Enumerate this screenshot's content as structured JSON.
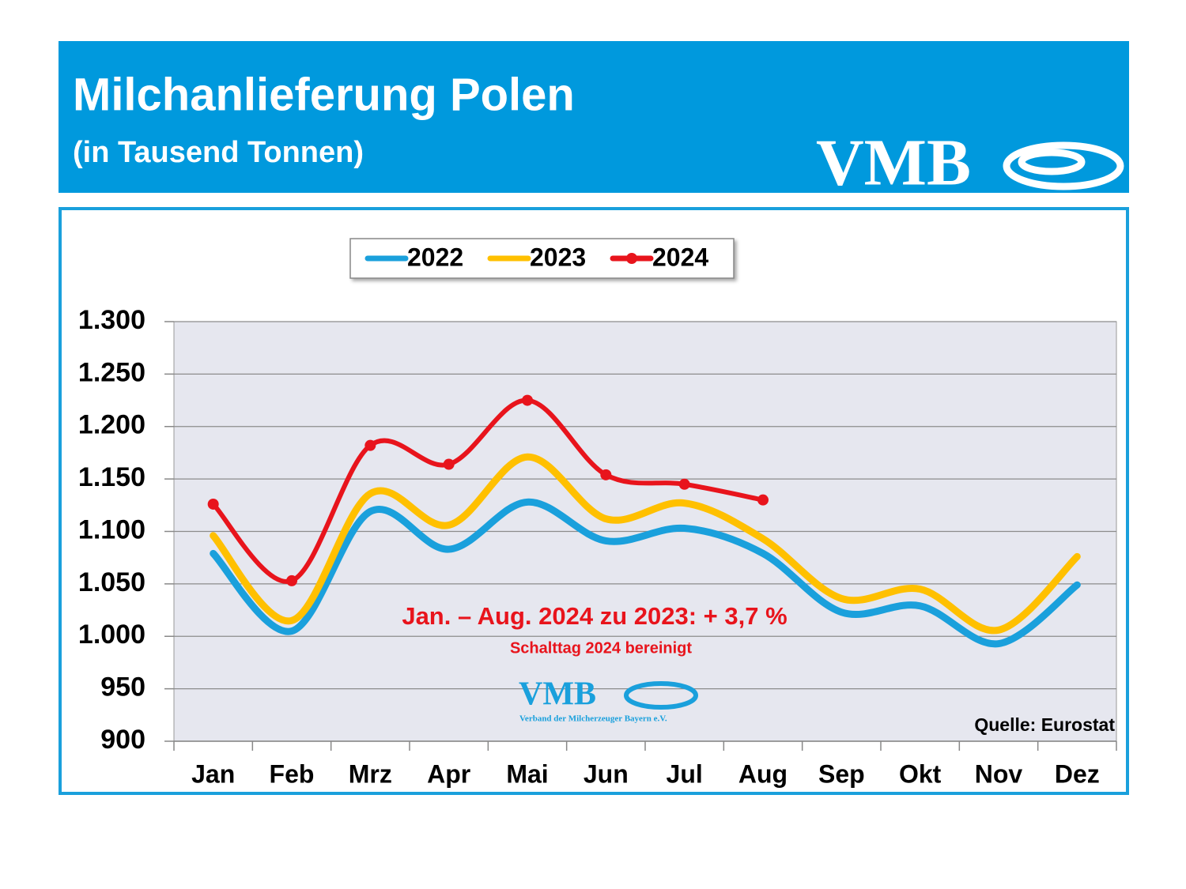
{
  "header": {
    "title": "Milchanlieferung Polen",
    "subtitle": "(in Tausend Tonnen)",
    "logo": "VMB"
  },
  "chart_data": {
    "type": "line",
    "categories": [
      "Jan",
      "Feb",
      "Mrz",
      "Apr",
      "Mai",
      "Jun",
      "Jul",
      "Aug",
      "Sep",
      "Okt",
      "Nov",
      "Dez"
    ],
    "series": [
      {
        "name": "2022",
        "color": "#1aa0dc",
        "values": [
          1079,
          1005,
          1119,
          1083,
          1128,
          1091,
          1103,
          1079,
          1023,
          1029,
          993,
          1049
        ]
      },
      {
        "name": "2023",
        "color": "#ffc000",
        "values": [
          1096,
          1015,
          1136,
          1106,
          1171,
          1112,
          1127,
          1093,
          1036,
          1045,
          1006,
          1076
        ]
      },
      {
        "name": "2024",
        "color": "#e8141c",
        "markers": true,
        "values": [
          1126,
          1053,
          1182,
          1164,
          1225,
          1154,
          1145,
          1130,
          null,
          null,
          null,
          null
        ]
      }
    ],
    "ylim": [
      900,
      1300
    ],
    "yticks": [
      900,
      950,
      {
        "value": 1000,
        "label": "1.000"
      },
      {
        "value": 1050,
        "label": "1.050"
      },
      {
        "value": 1100,
        "label": "1.100"
      },
      {
        "value": 1150,
        "label": "1.150"
      },
      {
        "value": 1200,
        "label": "1.200"
      },
      {
        "value": 1250,
        "label": "1.250"
      },
      {
        "value": 1300,
        "label": "1.300"
      }
    ],
    "grid": true,
    "legend": "top",
    "annotations": [
      "Jan. – Aug. 2024 zu 2023: + 3,7 %",
      "Schalttag 2024 bereinigt"
    ],
    "watermark": {
      "logo": "VMB",
      "text": "Verband der Milcherzeuger Bayern e.V."
    },
    "source": "Quelle: Eurostat"
  }
}
